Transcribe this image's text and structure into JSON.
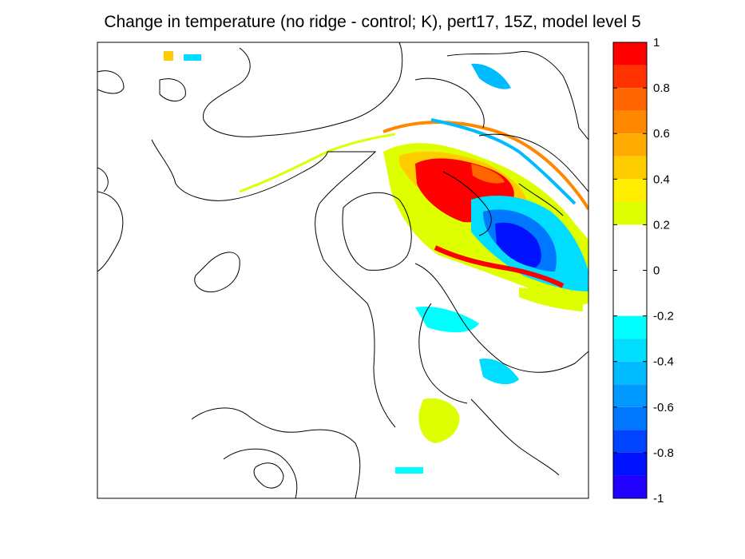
{
  "title": "Change in temperature (no ridge - control; K), pert17, 15Z, model level 5",
  "chart_data": {
    "type": "heatmap",
    "title": "Change in temperature (no ridge - control; K), pert17, 15Z, model level 5",
    "colorbar": {
      "range": [
        -1,
        1
      ],
      "tick_values": [
        1,
        0.8,
        0.6,
        0.4,
        0.2,
        0,
        -0.2,
        -0.4,
        -0.6,
        -0.8,
        -1
      ],
      "tick_labels": [
        "1",
        "0.8",
        "0.6",
        "0.4",
        "0.2",
        "0",
        "-0.2",
        "-0.4",
        "-0.6",
        "-0.8",
        "-1"
      ],
      "bins": [
        {
          "from": 0.9,
          "to": 1.0,
          "color": "#ff0000"
        },
        {
          "from": 0.8,
          "to": 0.9,
          "color": "#ff3300"
        },
        {
          "from": 0.7,
          "to": 0.8,
          "color": "#ff6600"
        },
        {
          "from": 0.6,
          "to": 0.7,
          "color": "#ff8800"
        },
        {
          "from": 0.5,
          "to": 0.6,
          "color": "#ffaa00"
        },
        {
          "from": 0.4,
          "to": 0.5,
          "color": "#ffcc00"
        },
        {
          "from": 0.3,
          "to": 0.4,
          "color": "#ffee00"
        },
        {
          "from": 0.2,
          "to": 0.3,
          "color": "#ddff00"
        },
        {
          "from": -0.2,
          "to": 0.2,
          "color": "#ffffff"
        },
        {
          "from": -0.3,
          "to": -0.2,
          "color": "#00ffff"
        },
        {
          "from": -0.4,
          "to": -0.3,
          "color": "#00ddff"
        },
        {
          "from": -0.5,
          "to": -0.4,
          "color": "#00bbff"
        },
        {
          "from": -0.6,
          "to": -0.5,
          "color": "#0099ff"
        },
        {
          "from": -0.7,
          "to": -0.6,
          "color": "#0077ff"
        },
        {
          "from": -0.8,
          "to": -0.7,
          "color": "#0044ff"
        },
        {
          "from": -0.9,
          "to": -0.8,
          "color": "#0011ff"
        },
        {
          "from": -1.0,
          "to": -0.9,
          "color": "#2200ff"
        }
      ]
    },
    "overlay": "black terrain height contours"
  }
}
